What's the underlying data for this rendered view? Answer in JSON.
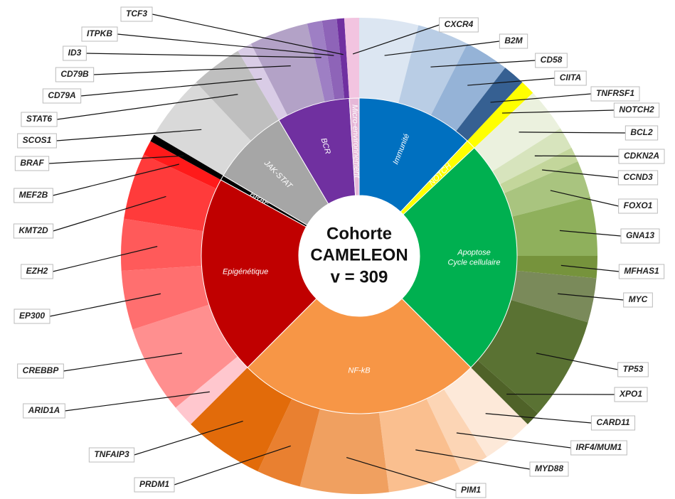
{
  "chart_data": {
    "type": "sunburst",
    "title": [
      "Cohorte",
      "CAMELEON",
      "v = 309"
    ],
    "groups": [
      {
        "label": [
          "Immunité"
        ],
        "color": "#0070c0",
        "value": 12,
        "children": [
          {
            "name": "B2M",
            "color": "#dce6f2",
            "value": 4
          },
          {
            "name": "CD58",
            "color": "#b9cde5",
            "value": 3.5
          },
          {
            "name": "CIITA",
            "color": "#95b3d7",
            "value": 3
          },
          {
            "name": "TNFRSF1",
            "color": "#366092",
            "value": 1.5
          }
        ]
      },
      {
        "label": [
          "NOTCH"
        ],
        "color": "#ffff00",
        "value": 1,
        "children": [
          {
            "name": "NOTCH2",
            "color": "#ffff00",
            "value": 1
          }
        ]
      },
      {
        "label": [
          "Apoptose",
          "Cycle cellulaire"
        ],
        "color": "#00b050",
        "value": 24.5,
        "children": [
          {
            "name": "BCL2",
            "color": "#ebf1de",
            "value": 3
          },
          {
            "name": "CDKN2A",
            "color": "#d7e4bd",
            "value": 1.5
          },
          {
            "name": "CCND3",
            "color": "#c3d69b",
            "value": 1
          },
          {
            "name": "FOXO1",
            "color": "#a9c47f",
            "value": 2.5
          },
          {
            "name": "GNA13",
            "color": "#8fb05c",
            "value": 4
          },
          {
            "name": "MFHAS1",
            "color": "#76933c",
            "value": 1.5
          },
          {
            "name": "MYC",
            "color": "#7a8a5a",
            "value": 3
          },
          {
            "name": "TP53",
            "color": "#5a7233",
            "value": 7
          },
          {
            "name": "XPO1",
            "color": "#4f6228",
            "value": 1
          }
        ]
      },
      {
        "label": [
          "NF-kB"
        ],
        "color": "#f79646",
        "value": 25,
        "children": [
          {
            "name": "CARD11",
            "color": "#fde9d9",
            "value": 3.5
          },
          {
            "name": "IRF4/MUM1",
            "color": "#fcd5b5",
            "value": 2
          },
          {
            "name": "MYD88",
            "color": "#fabf8f",
            "value": 5
          },
          {
            "name": "PIM1",
            "color": "#f0a060",
            "value": 6
          },
          {
            "name": "PRDM1",
            "color": "#e98030",
            "value": 3
          },
          {
            "name": "TNFAIP3",
            "color": "#e26b0a",
            "value": 5.5
          }
        ]
      },
      {
        "label": [
          "Epigénétique"
        ],
        "color": "#c00000",
        "value": 20.5,
        "children": [
          {
            "name": "ARID1A",
            "color": "#ffc7ce",
            "value": 1.5
          },
          {
            "name": "CREBBP",
            "color": "#ff8f8f",
            "value": 6
          },
          {
            "name": "EP300",
            "color": "#ff6f6f",
            "value": 4
          },
          {
            "name": "EZH2",
            "color": "#ff5a5a",
            "value": 3.5
          },
          {
            "name": "KMT2D",
            "color": "#ff3b3b",
            "value": 4.5
          },
          {
            "name": "MEF2B",
            "color": "#ff1a1a",
            "value": 1
          }
        ]
      },
      {
        "label": [
          "BRAF"
        ],
        "color": "#000000",
        "value": 0.5,
        "children": [
          {
            "name": "BRAF",
            "color": "#000000",
            "value": 0.5
          }
        ]
      },
      {
        "label": [
          "JAK-STAT"
        ],
        "color": "#a6a6a6",
        "value": 8,
        "children": [
          {
            "name": "SCOS1",
            "color": "#d9d9d9",
            "value": 4.5
          },
          {
            "name": "STAT6",
            "color": "#bfbfbf",
            "value": 3.5
          }
        ]
      },
      {
        "label": [
          "BCR"
        ],
        "color": "#7030a0",
        "value": 7.5,
        "children": [
          {
            "name": "CD79A",
            "color": "#d9cce6",
            "value": 1
          },
          {
            "name": "CD79B",
            "color": "#b3a2c7",
            "value": 4
          },
          {
            "name": "ID3",
            "color": "#9e7fc4",
            "value": 1
          },
          {
            "name": "ITPKB",
            "color": "#8e64b8",
            "value": 1
          },
          {
            "name": "TCF3",
            "color": "#7030a0",
            "value": 0.5
          }
        ]
      },
      {
        "label": [
          "Micro-environnement"
        ],
        "color": "#e6b8d8",
        "value": 1,
        "children": [
          {
            "name": "CXCR4",
            "color": "#f2c4e0",
            "value": 1
          }
        ]
      }
    ]
  }
}
